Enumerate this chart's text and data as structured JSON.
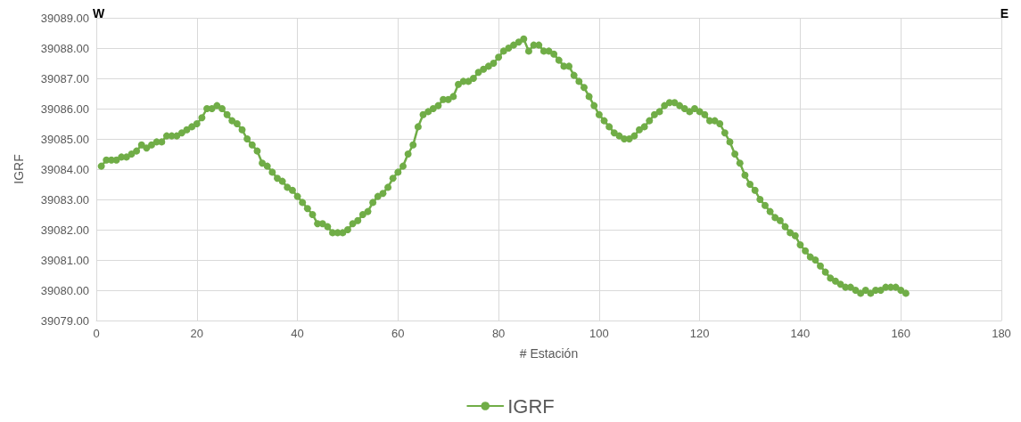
{
  "chart_data": {
    "type": "line",
    "xlabel": "# Estación",
    "ylabel": "IGRF",
    "annotations": [
      "W",
      "E"
    ],
    "x": [
      1,
      2,
      3,
      4,
      5,
      6,
      7,
      8,
      9,
      10,
      11,
      12,
      13,
      14,
      15,
      16,
      17,
      18,
      19,
      20,
      21,
      22,
      23,
      24,
      25,
      26,
      27,
      28,
      29,
      30,
      31,
      32,
      33,
      34,
      35,
      36,
      37,
      38,
      39,
      40,
      41,
      42,
      43,
      44,
      45,
      46,
      47,
      48,
      49,
      50,
      51,
      52,
      53,
      54,
      55,
      56,
      57,
      58,
      59,
      60,
      61,
      62,
      63,
      64,
      65,
      66,
      67,
      68,
      69,
      70,
      71,
      72,
      73,
      74,
      75,
      76,
      77,
      78,
      79,
      80,
      81,
      82,
      83,
      84,
      85,
      86,
      87,
      88,
      89,
      90,
      91,
      92,
      93,
      94,
      95,
      96,
      97,
      98,
      99,
      100,
      101,
      102,
      103,
      104,
      105,
      106,
      107,
      108,
      109,
      110,
      111,
      112,
      113,
      114,
      115,
      116,
      117,
      118,
      119,
      120,
      121,
      122,
      123,
      124,
      125,
      126,
      127,
      128,
      129,
      130,
      131,
      132,
      133,
      134,
      135,
      136,
      137,
      138,
      139,
      140,
      141,
      142,
      143,
      144,
      145,
      146,
      147,
      148,
      149,
      150,
      151,
      152,
      153,
      154,
      155,
      156,
      157,
      158,
      159,
      160,
      161
    ],
    "series": [
      {
        "name": "IGRF",
        "color": "#70ad47",
        "values": [
          39084.1,
          39084.3,
          39084.3,
          39084.3,
          39084.4,
          39084.4,
          39084.5,
          39084.6,
          39084.8,
          39084.7,
          39084.8,
          39084.9,
          39084.9,
          39085.1,
          39085.1,
          39085.1,
          39085.2,
          39085.3,
          39085.4,
          39085.5,
          39085.7,
          39086.0,
          39086.0,
          39086.1,
          39086.0,
          39085.8,
          39085.6,
          39085.5,
          39085.3,
          39085.0,
          39084.8,
          39084.6,
          39084.2,
          39084.1,
          39083.9,
          39083.7,
          39083.6,
          39083.4,
          39083.3,
          39083.1,
          39082.9,
          39082.7,
          39082.5,
          39082.2,
          39082.2,
          39082.1,
          39081.9,
          39081.9,
          39081.9,
          39082.0,
          39082.2,
          39082.3,
          39082.5,
          39082.6,
          39082.9,
          39083.1,
          39083.2,
          39083.4,
          39083.7,
          39083.9,
          39084.1,
          39084.5,
          39084.8,
          39085.4,
          39085.8,
          39085.9,
          39086.0,
          39086.1,
          39086.3,
          39086.3,
          39086.4,
          39086.8,
          39086.9,
          39086.9,
          39087.0,
          39087.2,
          39087.3,
          39087.4,
          39087.5,
          39087.7,
          39087.9,
          39088.0,
          39088.1,
          39088.2,
          39088.3,
          39087.9,
          39088.1,
          39088.1,
          39087.9,
          39087.9,
          39087.8,
          39087.6,
          39087.4,
          39087.4,
          39087.1,
          39086.9,
          39086.7,
          39086.4,
          39086.1,
          39085.8,
          39085.6,
          39085.4,
          39085.2,
          39085.1,
          39085.0,
          39085.0,
          39085.1,
          39085.3,
          39085.4,
          39085.6,
          39085.8,
          39085.9,
          39086.1,
          39086.2,
          39086.2,
          39086.1,
          39086.0,
          39085.9,
          39086.0,
          39085.9,
          39085.8,
          39085.6,
          39085.6,
          39085.5,
          39085.2,
          39084.9,
          39084.5,
          39084.2,
          39083.8,
          39083.5,
          39083.3,
          39083.0,
          39082.8,
          39082.6,
          39082.4,
          39082.3,
          39082.1,
          39081.9,
          39081.8,
          39081.5,
          39081.3,
          39081.1,
          39081.0,
          39080.8,
          39080.6,
          39080.4,
          39080.3,
          39080.2,
          39080.1,
          39080.1,
          39080.0,
          39079.9,
          39080.0,
          39079.9,
          39080.0,
          39080.0,
          39080.1,
          39080.1,
          39080.1,
          39080.0,
          39079.9
        ]
      }
    ],
    "xlim": [
      0,
      180
    ],
    "xticks": [
      0,
      20,
      40,
      60,
      80,
      100,
      120,
      140,
      160,
      180
    ],
    "ylim": [
      39079,
      39089
    ],
    "yticks": [
      {
        "value": 39079,
        "label": "39079.00"
      },
      {
        "value": 39080,
        "label": "39080.00"
      },
      {
        "value": 39081,
        "label": "39081.00"
      },
      {
        "value": 39082,
        "label": "39082.00"
      },
      {
        "value": 39083,
        "label": "39083.00"
      },
      {
        "value": 39084,
        "label": "39084.00"
      },
      {
        "value": 39085,
        "label": "39085.00"
      },
      {
        "value": 39086,
        "label": "39086.00"
      },
      {
        "value": 39087,
        "label": "39087.00"
      },
      {
        "value": 39088,
        "label": "39088.00"
      },
      {
        "value": 39089,
        "label": "39089.00"
      }
    ],
    "grid": true,
    "legend": "bottom",
    "marker": "circle",
    "line_style": "solid"
  }
}
